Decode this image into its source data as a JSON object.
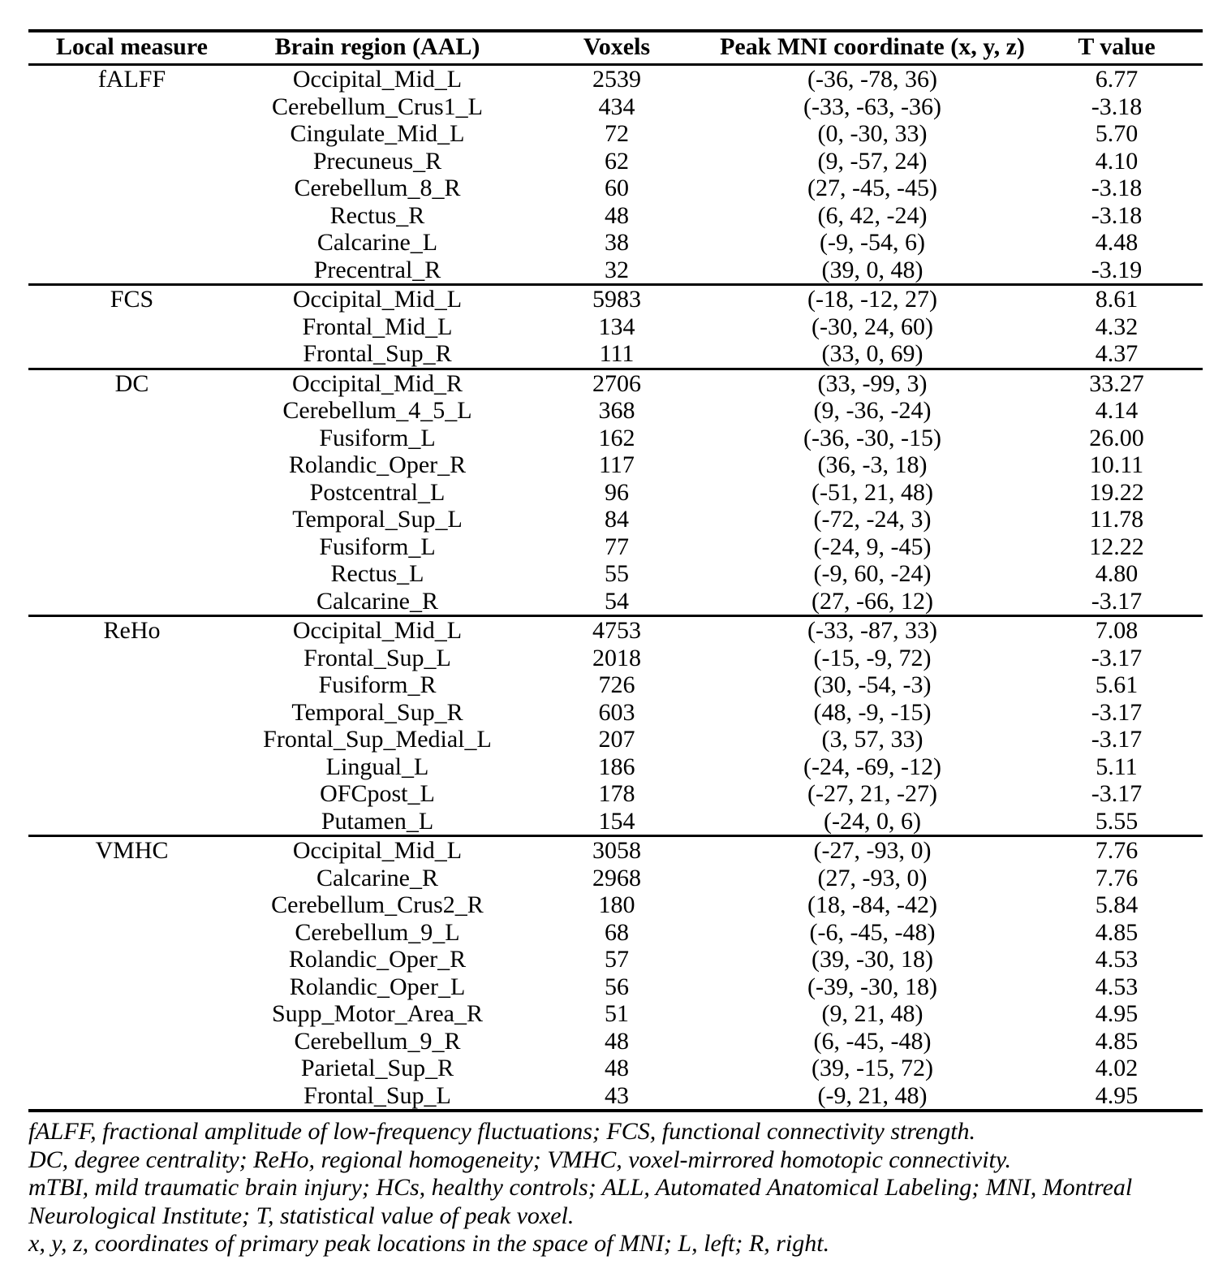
{
  "table": {
    "columns": [
      {
        "label": "Local measure"
      },
      {
        "label": "Brain region (AAL)"
      },
      {
        "label": "Voxels"
      },
      {
        "label": "Peak MNI coordinate (x, y, z)"
      },
      {
        "label": "T value"
      }
    ],
    "sections": [
      {
        "measure": "fALFF",
        "rows": [
          {
            "region": "Occipital_Mid_L",
            "voxels": "2539",
            "peak": "(-36, -78, 36)",
            "t": "6.77"
          },
          {
            "region": "Cerebellum_Crus1_L",
            "voxels": "434",
            "peak": "(-33, -63, -36)",
            "t": "-3.18"
          },
          {
            "region": "Cingulate_Mid_L",
            "voxels": "72",
            "peak": "(0, -30, 33)",
            "t": "5.70"
          },
          {
            "region": "Precuneus_R",
            "voxels": "62",
            "peak": "(9, -57, 24)",
            "t": "4.10"
          },
          {
            "region": "Cerebellum_8_R",
            "voxels": "60",
            "peak": "(27, -45, -45)",
            "t": "-3.18"
          },
          {
            "region": "Rectus_R",
            "voxels": "48",
            "peak": "(6, 42, -24)",
            "t": "-3.18"
          },
          {
            "region": "Calcarine_L",
            "voxels": "38",
            "peak": "(-9, -54, 6)",
            "t": "4.48"
          },
          {
            "region": "Precentral_R",
            "voxels": "32",
            "peak": "(39, 0, 48)",
            "t": "-3.19"
          }
        ]
      },
      {
        "measure": "FCS",
        "rows": [
          {
            "region": "Occipital_Mid_L",
            "voxels": "5983",
            "peak": "(-18, -12, 27)",
            "t": "8.61"
          },
          {
            "region": "Frontal_Mid_L",
            "voxels": "134",
            "peak": "(-30, 24, 60)",
            "t": "4.32"
          },
          {
            "region": "Frontal_Sup_R",
            "voxels": "111",
            "peak": "(33, 0, 69)",
            "t": "4.37"
          }
        ]
      },
      {
        "measure": "DC",
        "rows": [
          {
            "region": "Occipital_Mid_R",
            "voxels": "2706",
            "peak": "(33, -99, 3)",
            "t": "33.27"
          },
          {
            "region": "Cerebellum_4_5_L",
            "voxels": "368",
            "peak": "(9, -36, -24)",
            "t": "4.14"
          },
          {
            "region": "Fusiform_L",
            "voxels": "162",
            "peak": "(-36, -30, -15)",
            "t": "26.00"
          },
          {
            "region": "Rolandic_Oper_R",
            "voxels": "117",
            "peak": "(36, -3, 18)",
            "t": "10.11"
          },
          {
            "region": "Postcentral_L",
            "voxels": "96",
            "peak": "(-51, 21, 48)",
            "t": "19.22"
          },
          {
            "region": "Temporal_Sup_L",
            "voxels": "84",
            "peak": "(-72, -24, 3)",
            "t": "11.78"
          },
          {
            "region": "Fusiform_L",
            "voxels": "77",
            "peak": "(-24, 9, -45)",
            "t": "12.22"
          },
          {
            "region": "Rectus_L",
            "voxels": "55",
            "peak": "(-9, 60, -24)",
            "t": "4.80"
          },
          {
            "region": "Calcarine_R",
            "voxels": "54",
            "peak": "(27, -66, 12)",
            "t": "-3.17"
          }
        ]
      },
      {
        "measure": "ReHo",
        "rows": [
          {
            "region": "Occipital_Mid_L",
            "voxels": "4753",
            "peak": "(-33, -87, 33)",
            "t": "7.08"
          },
          {
            "region": "Frontal_Sup_L",
            "voxels": "2018",
            "peak": "(-15, -9, 72)",
            "t": "-3.17"
          },
          {
            "region": "Fusiform_R",
            "voxels": "726",
            "peak": "(30, -54, -3)",
            "t": "5.61"
          },
          {
            "region": "Temporal_Sup_R",
            "voxels": "603",
            "peak": "(48, -9, -15)",
            "t": "-3.17"
          },
          {
            "region": "Frontal_Sup_Medial_L",
            "voxels": "207",
            "peak": "(3, 57, 33)",
            "t": "-3.17"
          },
          {
            "region": "Lingual_L",
            "voxels": "186",
            "peak": "(-24, -69, -12)",
            "t": "5.11"
          },
          {
            "region": "OFCpost_L",
            "voxels": "178",
            "peak": "(-27, 21, -27)",
            "t": "-3.17"
          },
          {
            "region": "Putamen_L",
            "voxels": "154",
            "peak": "(-24, 0, 6)",
            "t": "5.55"
          }
        ]
      },
      {
        "measure": "VMHC",
        "rows": [
          {
            "region": "Occipital_Mid_L",
            "voxels": "3058",
            "peak": "(-27, -93, 0)",
            "t": "7.76"
          },
          {
            "region": "Calcarine_R",
            "voxels": "2968",
            "peak": "(27, -93, 0)",
            "t": "7.76"
          },
          {
            "region": "Cerebellum_Crus2_R",
            "voxels": "180",
            "peak": "(18, -84, -42)",
            "t": "5.84"
          },
          {
            "region": "Cerebellum_9_L",
            "voxels": "68",
            "peak": "(-6, -45, -48)",
            "t": "4.85"
          },
          {
            "region": "Rolandic_Oper_R",
            "voxels": "57",
            "peak": "(39, -30, 18)",
            "t": "4.53"
          },
          {
            "region": "Rolandic_Oper_L",
            "voxels": "56",
            "peak": "(-39, -30, 18)",
            "t": "4.53"
          },
          {
            "region": "Supp_Motor_Area_R",
            "voxels": "51",
            "peak": "(9, 21, 48)",
            "t": "4.95"
          },
          {
            "region": "Cerebellum_9_R",
            "voxels": "48",
            "peak": "(6, -45, -48)",
            "t": "4.85"
          },
          {
            "region": "Parietal_Sup_R",
            "voxels": "48",
            "peak": "(39, -15, 72)",
            "t": "4.02"
          },
          {
            "region": "Frontal_Sup_L",
            "voxels": "43",
            "peak": "(-9, 21, 48)",
            "t": "4.95"
          }
        ]
      }
    ]
  },
  "footnotes": [
    "fALFF, fractional amplitude of low-frequency fluctuations; FCS, functional connectivity strength.",
    "DC, degree centrality; ReHo, regional homogeneity; VMHC, voxel-mirrored homotopic connectivity.",
    "mTBI, mild traumatic brain injury; HCs, healthy controls; ALL, Automated Anatomical Labeling; MNI, Montreal Neurological Institute; T, statistical value of peak voxel.",
    "x, y, z, coordinates of primary peak locations in the space of MNI; L, left; R, right."
  ]
}
